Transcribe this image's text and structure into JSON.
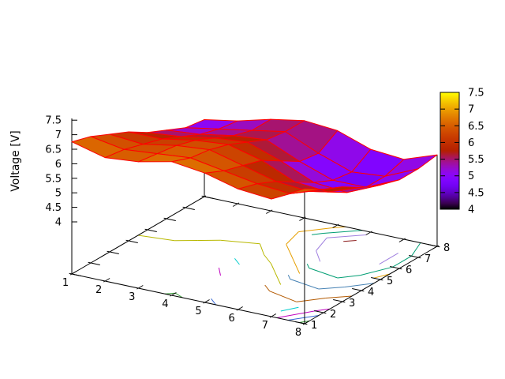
{
  "chart_data": {
    "type": "surface3d",
    "title": "",
    "zlabel": "Voltage [V]",
    "x": [
      1,
      2,
      3,
      4,
      5,
      6,
      7,
      8
    ],
    "y": [
      1,
      2,
      3,
      4,
      5,
      6,
      7,
      8
    ],
    "z": [
      [
        6.8,
        6.5,
        6.6,
        6.85,
        6.7,
        6.4,
        6.3,
        6.9
      ],
      [
        6.6,
        6.4,
        6.5,
        6.6,
        6.4,
        6.2,
        6.1,
        6.5
      ],
      [
        6.3,
        6.2,
        6.4,
        6.5,
        6.2,
        5.9,
        5.8,
        6.2
      ],
      [
        6.0,
        6.0,
        6.2,
        6.3,
        6.0,
        5.5,
        5.4,
        5.8
      ],
      [
        5.6,
        5.7,
        5.9,
        6.0,
        5.6,
        5.1,
        5.0,
        5.5
      ],
      [
        5.3,
        5.4,
        5.6,
        5.7,
        5.2,
        4.8,
        4.8,
        5.3
      ],
      [
        5.0,
        5.2,
        5.4,
        5.6,
        5.1,
        4.7,
        4.8,
        5.3
      ],
      [
        4.9,
        5.1,
        5.4,
        5.6,
        5.5,
        5.1,
        5.0,
        5.4
      ]
    ],
    "xlim": [
      1,
      8
    ],
    "ylim": [
      1,
      8
    ],
    "zlim": [
      4,
      7.5
    ],
    "cbrange": [
      4,
      7.5
    ],
    "xtick_labels": [
      "1",
      "2",
      "3",
      "4",
      "5",
      "6",
      "7",
      "8"
    ],
    "ytick_labels": [
      "1",
      "2",
      "3",
      "4",
      "5",
      "6",
      "7",
      "8"
    ],
    "ztick_labels": [
      "4",
      "4.5",
      "5",
      "5.5",
      "6",
      "6.5",
      "7",
      "7.5"
    ],
    "colorbar_tick_labels": [
      "7.5",
      "7",
      "6.5",
      "6",
      "5.5",
      "5",
      "4.5",
      "4"
    ],
    "palette": {
      "name": "pm3d rgbformulae 7,5,15"
    },
    "surface_mesh_color": "#ff0000",
    "axis_color": "#000000",
    "contours": {
      "levels": [
        4.8,
        5.0,
        5.2,
        5.4,
        5.6,
        5.8,
        6.0,
        6.2,
        6.4,
        6.6,
        6.8
      ],
      "colors": [
        "#8b1a1a",
        "#9f7fdf",
        "#009e73",
        "#e69f00",
        "#4682b4",
        "#b8b800",
        "#b35900",
        "#00cdcd",
        "#bf00bf",
        "#3465d4",
        "#3ca03c"
      ]
    }
  }
}
